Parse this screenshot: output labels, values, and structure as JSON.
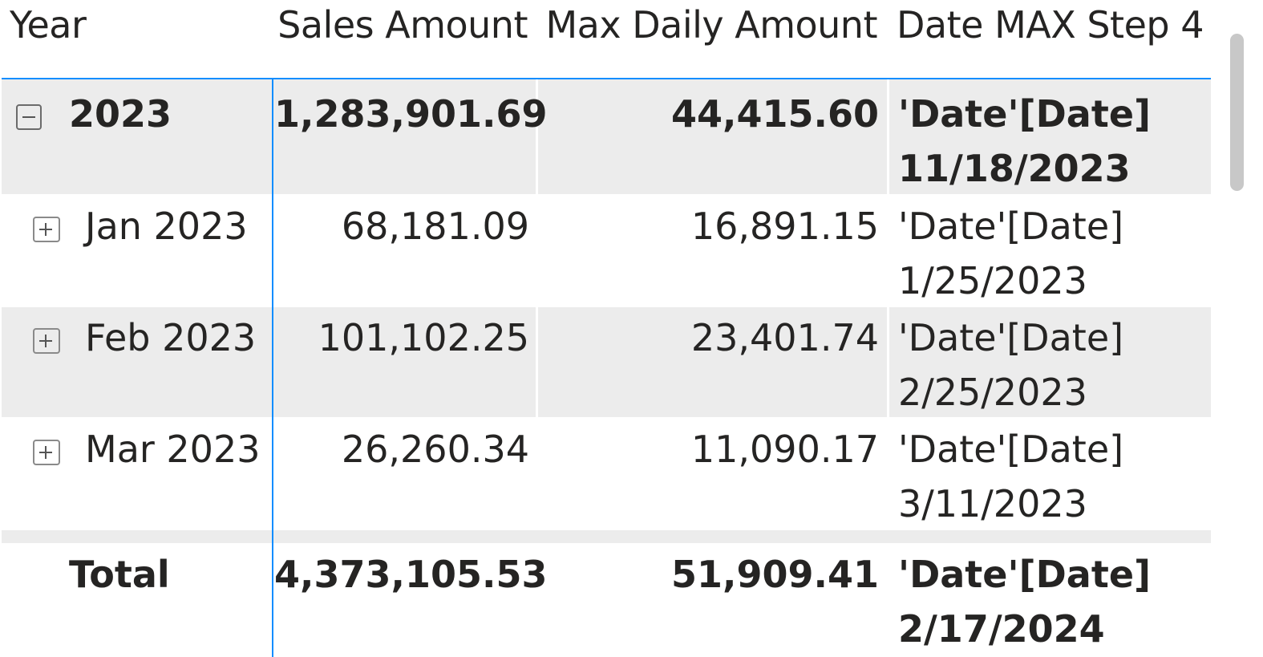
{
  "columns": {
    "year": "Year",
    "sales_amount": "Sales Amount",
    "max_daily_amount": "Max Daily Amount",
    "date_max_step4": "Date MAX Step 4"
  },
  "rows": [
    {
      "label": "2023",
      "level": "year",
      "expanded": true,
      "sales_amount": "1,283,901.69",
      "max_daily_amount": "44,415.60",
      "date_line1": "'Date'[Date]",
      "date_line2": "11/18/2023"
    },
    {
      "label": "Jan 2023",
      "level": "month",
      "expanded": false,
      "sales_amount": "68,181.09",
      "max_daily_amount": "16,891.15",
      "date_line1": "'Date'[Date]",
      "date_line2": "1/25/2023"
    },
    {
      "label": "Feb 2023",
      "level": "month",
      "expanded": false,
      "sales_amount": "101,102.25",
      "max_daily_amount": "23,401.74",
      "date_line1": "'Date'[Date]",
      "date_line2": "2/25/2023"
    },
    {
      "label": "Mar 2023",
      "level": "month",
      "expanded": false,
      "sales_amount": "26,260.34",
      "max_daily_amount": "11,090.17",
      "date_line1": "'Date'[Date]",
      "date_line2": "3/11/2023"
    }
  ],
  "total": {
    "label": "Total",
    "sales_amount": "4,373,105.53",
    "max_daily_amount": "51,909.41",
    "date_line1": "'Date'[Date]",
    "date_line2": "2/17/2024"
  },
  "colors": {
    "accent": "#118DFF",
    "row_shade": "#ececec",
    "text": "#252423"
  }
}
